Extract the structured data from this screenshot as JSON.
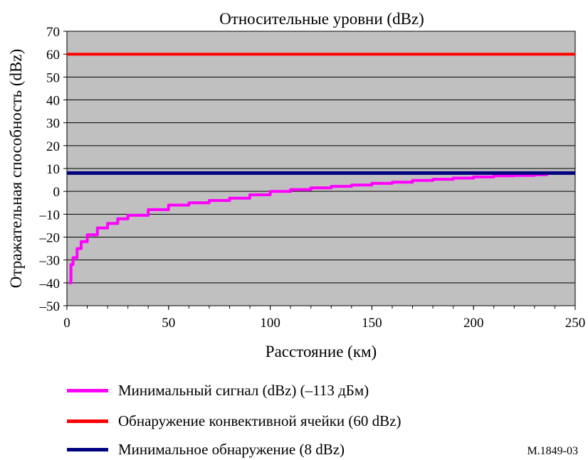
{
  "chart_data": {
    "type": "line",
    "title": "Относительные уровни (dBz)",
    "xlabel": "Расстояние (км)",
    "ylabel": "Отражательная способность (dBz)",
    "xlim": [
      0,
      250
    ],
    "ylim": [
      -50,
      70
    ],
    "x_ticks": [
      "0",
      "50",
      "100",
      "150",
      "200",
      "250"
    ],
    "y_ticks": [
      "70",
      "60",
      "50",
      "40",
      "30",
      "20",
      "10",
      "0",
      "–10",
      "–20",
      "–30",
      "–40",
      "–50"
    ],
    "grid": true,
    "plot_background": "#c0c0c0",
    "series": [
      {
        "name": "Минимальный сигнал (dBz) (–113 дБм)",
        "color": "#ff00ff",
        "x": [
          1,
          2,
          3,
          5,
          7,
          10,
          15,
          20,
          25,
          30,
          40,
          50,
          60,
          70,
          80,
          90,
          100,
          110,
          120,
          130,
          140,
          150,
          160,
          170,
          180,
          190,
          200,
          210,
          220,
          230,
          236
        ],
        "y": [
          -40,
          -32,
          -29,
          -25,
          -22,
          -19,
          -16,
          -14,
          -12,
          -10.5,
          -8,
          -6,
          -5,
          -4,
          -3,
          -1.5,
          0,
          0.8,
          1.5,
          2.2,
          2.8,
          3.5,
          4,
          4.8,
          5.3,
          5.8,
          6.3,
          6.8,
          7,
          7.3,
          7.5
        ]
      },
      {
        "name": "Обнаружение конвективной ячейки (60 dBz)",
        "color": "#ff0000",
        "x": [
          0,
          250
        ],
        "y": [
          60,
          60
        ]
      },
      {
        "name": "Минимальное обнаружение (8 dBz)",
        "color": "#000080",
        "x": [
          0,
          250
        ],
        "y": [
          8,
          8
        ]
      }
    ]
  },
  "figure_id": "M.1849-03"
}
